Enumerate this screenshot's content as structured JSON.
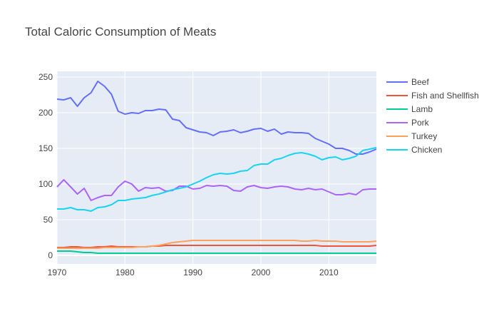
{
  "chart_data": {
    "type": "line",
    "title": "Total Caloric Consumption of Meats",
    "xlabel": "",
    "ylabel": "",
    "xlim": [
      1970,
      2017
    ],
    "ylim": [
      -12,
      258
    ],
    "x_ticks": [
      1970,
      1980,
      1990,
      2000,
      2010
    ],
    "y_ticks": [
      0,
      50,
      100,
      150,
      200,
      250
    ],
    "grid": true,
    "legend_position": "right",
    "x": [
      1970,
      1971,
      1972,
      1973,
      1974,
      1975,
      1976,
      1977,
      1978,
      1979,
      1980,
      1981,
      1982,
      1983,
      1984,
      1985,
      1986,
      1987,
      1988,
      1989,
      1990,
      1991,
      1992,
      1993,
      1994,
      1995,
      1996,
      1997,
      1998,
      1999,
      2000,
      2001,
      2002,
      2003,
      2004,
      2005,
      2006,
      2007,
      2008,
      2009,
      2010,
      2011,
      2012,
      2013,
      2014,
      2015,
      2016,
      2017
    ],
    "series": [
      {
        "name": "Beef",
        "color": "#636efa",
        "values": [
          219,
          218,
          221,
          209,
          221,
          228,
          244,
          237,
          226,
          202,
          198,
          200,
          199,
          203,
          203,
          205,
          204,
          191,
          189,
          179,
          176,
          173,
          172,
          168,
          173,
          174,
          176,
          172,
          174,
          177,
          178,
          174,
          177,
          170,
          173,
          172,
          172,
          171,
          164,
          160,
          156,
          150,
          150,
          147,
          142,
          142,
          145,
          149
        ]
      },
      {
        "name": "Fish and Shellfish",
        "color": "#ef553b",
        "values": [
          11,
          11,
          12,
          12,
          11,
          11,
          12,
          12,
          13,
          12,
          12,
          12,
          12,
          12,
          13,
          13,
          14,
          14,
          14,
          14,
          14,
          14,
          14,
          14,
          14,
          14,
          14,
          14,
          14,
          14,
          14,
          14,
          14,
          14,
          14,
          14,
          14,
          14,
          14,
          13,
          13,
          13,
          13,
          13,
          13,
          13,
          13,
          14
        ]
      },
      {
        "name": "Lamb",
        "color": "#00cc96",
        "values": [
          6,
          6,
          6,
          5,
          4,
          4,
          3,
          3,
          3,
          3,
          3,
          3,
          3,
          3,
          3,
          3,
          3,
          3,
          3,
          3,
          3,
          3,
          3,
          3,
          3,
          3,
          3,
          3,
          3,
          3,
          3,
          3,
          3,
          3,
          3,
          3,
          3,
          3,
          3,
          3,
          3,
          3,
          3,
          3,
          3,
          3,
          3,
          3
        ]
      },
      {
        "name": "Pork",
        "color": "#ab63fa",
        "values": [
          96,
          106,
          96,
          86,
          94,
          77,
          81,
          84,
          84,
          96,
          104,
          100,
          90,
          95,
          94,
          95,
          90,
          91,
          97,
          97,
          93,
          94,
          98,
          97,
          98,
          97,
          91,
          90,
          96,
          98,
          95,
          94,
          96,
          97,
          96,
          93,
          92,
          94,
          92,
          93,
          89,
          85,
          85,
          87,
          85,
          92,
          93,
          93
        ]
      },
      {
        "name": "Turkey",
        "color": "#ffa15a",
        "values": [
          10,
          10,
          10,
          10,
          10,
          10,
          10,
          11,
          11,
          11,
          11,
          11,
          12,
          12,
          13,
          14,
          16,
          18,
          19,
          20,
          21,
          21,
          21,
          21,
          21,
          21,
          21,
          21,
          21,
          21,
          21,
          21,
          21,
          21,
          21,
          21,
          20,
          20,
          21,
          20,
          20,
          20,
          19,
          19,
          19,
          19,
          19,
          20
        ]
      },
      {
        "name": "Chicken",
        "color": "#19d3f3",
        "values": [
          65,
          65,
          67,
          64,
          64,
          62,
          67,
          68,
          71,
          77,
          77,
          79,
          80,
          81,
          84,
          86,
          89,
          92,
          94,
          96,
          100,
          104,
          109,
          113,
          115,
          114,
          115,
          118,
          119,
          126,
          128,
          128,
          134,
          136,
          140,
          143,
          144,
          142,
          139,
          134,
          137,
          138,
          134,
          136,
          139,
          147,
          149,
          151
        ]
      }
    ]
  }
}
